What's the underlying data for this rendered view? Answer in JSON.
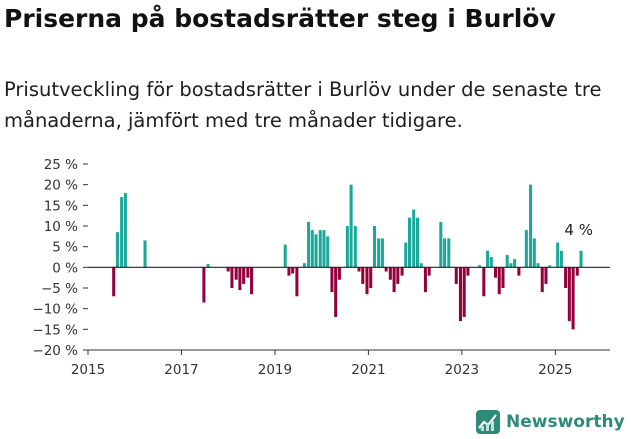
{
  "title": "Priserna på bostadsrätter steg i Burlöv",
  "subtitle": "Prisutveckling för bostadsrätter i Burlöv under de senaste tre månaderna, jämfört med tre månader tidigare.",
  "brand": {
    "name": "Newsworthy",
    "icon": "newsworthy-logo-icon"
  },
  "colors": {
    "positive": "#1aa89a",
    "negative": "#93003a",
    "axis": "#333333",
    "brand": "#2e8b7a"
  },
  "chart_data": {
    "type": "bar",
    "title": "Priserna på bostadsrätter steg i Burlöv",
    "ylim": [
      -20,
      25
    ],
    "xlim": [
      2015.0,
      2026.17
    ],
    "yticks": [
      25,
      20,
      15,
      10,
      5,
      0,
      -5,
      -10,
      -15,
      -20
    ],
    "ytick_labels": [
      "25 %",
      "20 %",
      "15 %",
      "10 %",
      "5 %",
      "0 %",
      "−5 %",
      "−10 %",
      "−15 %",
      "−20 %"
    ],
    "xticks": [
      2015,
      2017,
      2019,
      2021,
      2023,
      2025
    ],
    "xtick_labels": [
      "2015",
      "2017",
      "2019",
      "2021",
      "2023",
      "2025"
    ],
    "grid": false,
    "annotation": {
      "text": "4 %",
      "x": 2025.5,
      "value": 4
    },
    "bars": [
      {
        "x": 2015.55,
        "value": -7
      },
      {
        "x": 2015.63,
        "value": 8.5
      },
      {
        "x": 2015.72,
        "value": 17
      },
      {
        "x": 2015.8,
        "value": 18
      },
      {
        "x": 2016.22,
        "value": 6.5
      },
      {
        "x": 2017.48,
        "value": -8.5
      },
      {
        "x": 2017.57,
        "value": 0.8
      },
      {
        "x": 2018.0,
        "value": -1
      },
      {
        "x": 2018.08,
        "value": -5
      },
      {
        "x": 2018.17,
        "value": -3
      },
      {
        "x": 2018.25,
        "value": -5.5
      },
      {
        "x": 2018.33,
        "value": -4
      },
      {
        "x": 2018.42,
        "value": -2.5
      },
      {
        "x": 2018.5,
        "value": -6.5
      },
      {
        "x": 2019.22,
        "value": 5.5
      },
      {
        "x": 2019.3,
        "value": -2
      },
      {
        "x": 2019.38,
        "value": -1.5
      },
      {
        "x": 2019.47,
        "value": -7
      },
      {
        "x": 2019.63,
        "value": 1
      },
      {
        "x": 2019.72,
        "value": 11
      },
      {
        "x": 2019.8,
        "value": 9
      },
      {
        "x": 2019.88,
        "value": 8
      },
      {
        "x": 2019.97,
        "value": 9
      },
      {
        "x": 2020.05,
        "value": 9
      },
      {
        "x": 2020.13,
        "value": 7.5
      },
      {
        "x": 2020.22,
        "value": -6
      },
      {
        "x": 2020.3,
        "value": -12
      },
      {
        "x": 2020.38,
        "value": -3
      },
      {
        "x": 2020.55,
        "value": 10
      },
      {
        "x": 2020.63,
        "value": 20
      },
      {
        "x": 2020.72,
        "value": 10
      },
      {
        "x": 2020.8,
        "value": -1
      },
      {
        "x": 2020.88,
        "value": -4
      },
      {
        "x": 2020.97,
        "value": -6.5
      },
      {
        "x": 2021.05,
        "value": -5
      },
      {
        "x": 2021.13,
        "value": 10
      },
      {
        "x": 2021.22,
        "value": 7
      },
      {
        "x": 2021.3,
        "value": 7
      },
      {
        "x": 2021.38,
        "value": -1
      },
      {
        "x": 2021.47,
        "value": -3
      },
      {
        "x": 2021.55,
        "value": -6
      },
      {
        "x": 2021.63,
        "value": -4
      },
      {
        "x": 2021.72,
        "value": -2
      },
      {
        "x": 2021.8,
        "value": 6
      },
      {
        "x": 2021.88,
        "value": 12
      },
      {
        "x": 2021.97,
        "value": 14
      },
      {
        "x": 2022.05,
        "value": 12
      },
      {
        "x": 2022.13,
        "value": 1
      },
      {
        "x": 2022.22,
        "value": -6
      },
      {
        "x": 2022.3,
        "value": -2
      },
      {
        "x": 2022.55,
        "value": 11
      },
      {
        "x": 2022.63,
        "value": 7
      },
      {
        "x": 2022.72,
        "value": 7
      },
      {
        "x": 2022.88,
        "value": -4
      },
      {
        "x": 2022.97,
        "value": -13
      },
      {
        "x": 2023.05,
        "value": -12
      },
      {
        "x": 2023.13,
        "value": -2
      },
      {
        "x": 2023.38,
        "value": 0.5
      },
      {
        "x": 2023.47,
        "value": -7
      },
      {
        "x": 2023.55,
        "value": 4
      },
      {
        "x": 2023.63,
        "value": 2.5
      },
      {
        "x": 2023.72,
        "value": -2.5
      },
      {
        "x": 2023.8,
        "value": -6.5
      },
      {
        "x": 2023.88,
        "value": -5
      },
      {
        "x": 2023.97,
        "value": 3
      },
      {
        "x": 2024.05,
        "value": 1
      },
      {
        "x": 2024.13,
        "value": 2
      },
      {
        "x": 2024.22,
        "value": -2
      },
      {
        "x": 2024.38,
        "value": 9
      },
      {
        "x": 2024.47,
        "value": 20
      },
      {
        "x": 2024.55,
        "value": 7
      },
      {
        "x": 2024.63,
        "value": 1
      },
      {
        "x": 2024.72,
        "value": -6
      },
      {
        "x": 2024.8,
        "value": -4
      },
      {
        "x": 2024.88,
        "value": 0.5
      },
      {
        "x": 2025.05,
        "value": 6
      },
      {
        "x": 2025.13,
        "value": 4
      },
      {
        "x": 2025.22,
        "value": -5
      },
      {
        "x": 2025.3,
        "value": -13
      },
      {
        "x": 2025.38,
        "value": -15
      },
      {
        "x": 2025.47,
        "value": -2
      },
      {
        "x": 2025.55,
        "value": 4
      }
    ]
  }
}
